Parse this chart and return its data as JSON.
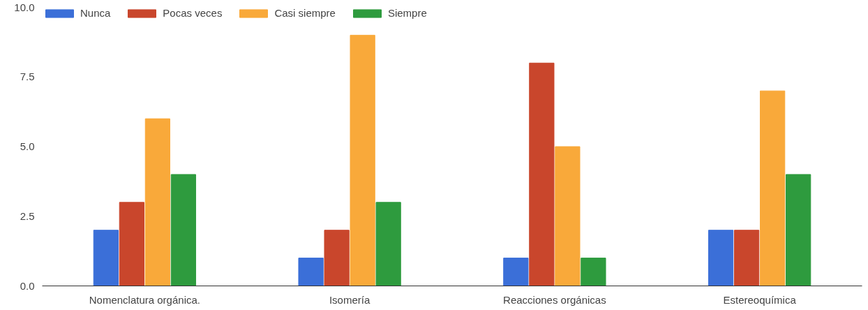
{
  "chart_data": {
    "type": "bar",
    "categories": [
      "Nomenclatura orgánica.",
      "Isomería",
      "Reacciones orgánicas",
      "Estereoquímica"
    ],
    "series": [
      {
        "name": "Nunca",
        "color": "#3b6fd8",
        "values": [
          2,
          1,
          1,
          2
        ]
      },
      {
        "name": "Pocas veces",
        "color": "#c9462c",
        "values": [
          3,
          2,
          8,
          2
        ]
      },
      {
        "name": "Casi siempre",
        "color": "#f9a93a",
        "values": [
          6,
          9,
          5,
          7
        ]
      },
      {
        "name": "Siempre",
        "color": "#2e9b3e",
        "values": [
          4,
          3,
          1,
          4
        ]
      }
    ],
    "ylim": [
      0,
      10
    ],
    "yticks": [
      {
        "value": 0,
        "label": "0.0"
      },
      {
        "value": 2.5,
        "label": "2.5"
      },
      {
        "value": 5,
        "label": "5.0"
      },
      {
        "value": 7.5,
        "label": "7.5"
      },
      {
        "value": 10,
        "label": "10.0"
      }
    ],
    "grid": false,
    "legend": "top left"
  }
}
